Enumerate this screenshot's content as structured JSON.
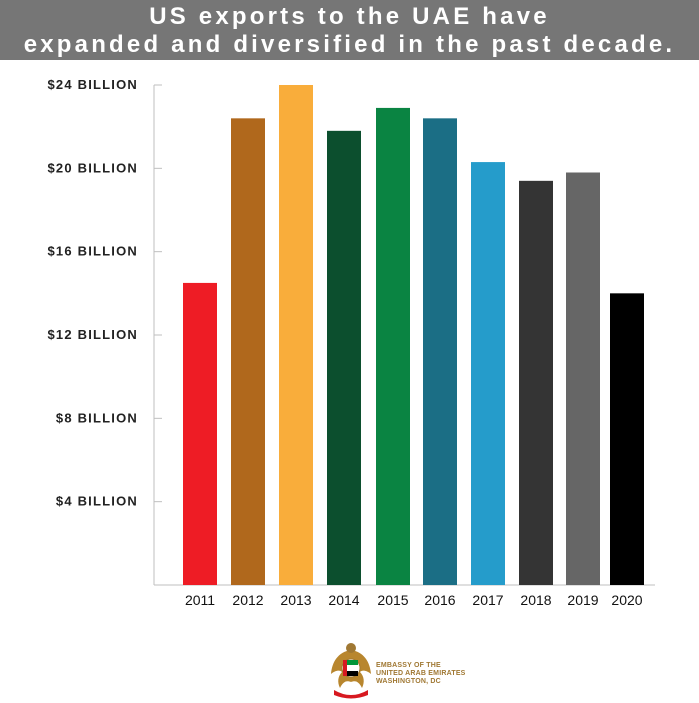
{
  "header": {
    "title_line1": "US exports to the UAE have",
    "title_line2": "expanded and diversified in the past decade."
  },
  "chart_data": {
    "type": "bar",
    "categories": [
      "2011",
      "2012",
      "2013",
      "2014",
      "2015",
      "2016",
      "2017",
      "2018",
      "2019",
      "2020"
    ],
    "values": [
      14.5,
      22.4,
      24.0,
      21.8,
      22.9,
      22.4,
      20.3,
      19.4,
      19.8,
      14.0
    ],
    "colors": [
      "#ee1c25",
      "#b0681c",
      "#f9ad3b",
      "#0c4f2e",
      "#0a8442",
      "#1b6e85",
      "#259ccb",
      "#343434",
      "#666666",
      "#000000"
    ],
    "yticks": [
      {
        "value": 4,
        "label": "$4 BILLION"
      },
      {
        "value": 8,
        "label": "$8 BILLION"
      },
      {
        "value": 12,
        "label": "$12 BILLION"
      },
      {
        "value": 16,
        "label": "$16 BILLION"
      },
      {
        "value": 20,
        "label": "$20 BILLION"
      },
      {
        "value": 24,
        "label": "$24 BILLION"
      }
    ],
    "ylim": [
      0,
      24
    ],
    "title": "US exports to the UAE have expanded and diversified in the past decade.",
    "xlabel": "",
    "ylabel": "",
    "grid": false,
    "legend": "none"
  },
  "footer": {
    "logo_icon": "uae-emblem-icon",
    "line1": "EMBASSY OF THE",
    "line2": "UNITED ARAB EMIRATES",
    "line3": "WASHINGTON, DC",
    "accent_color": "#a07833"
  }
}
